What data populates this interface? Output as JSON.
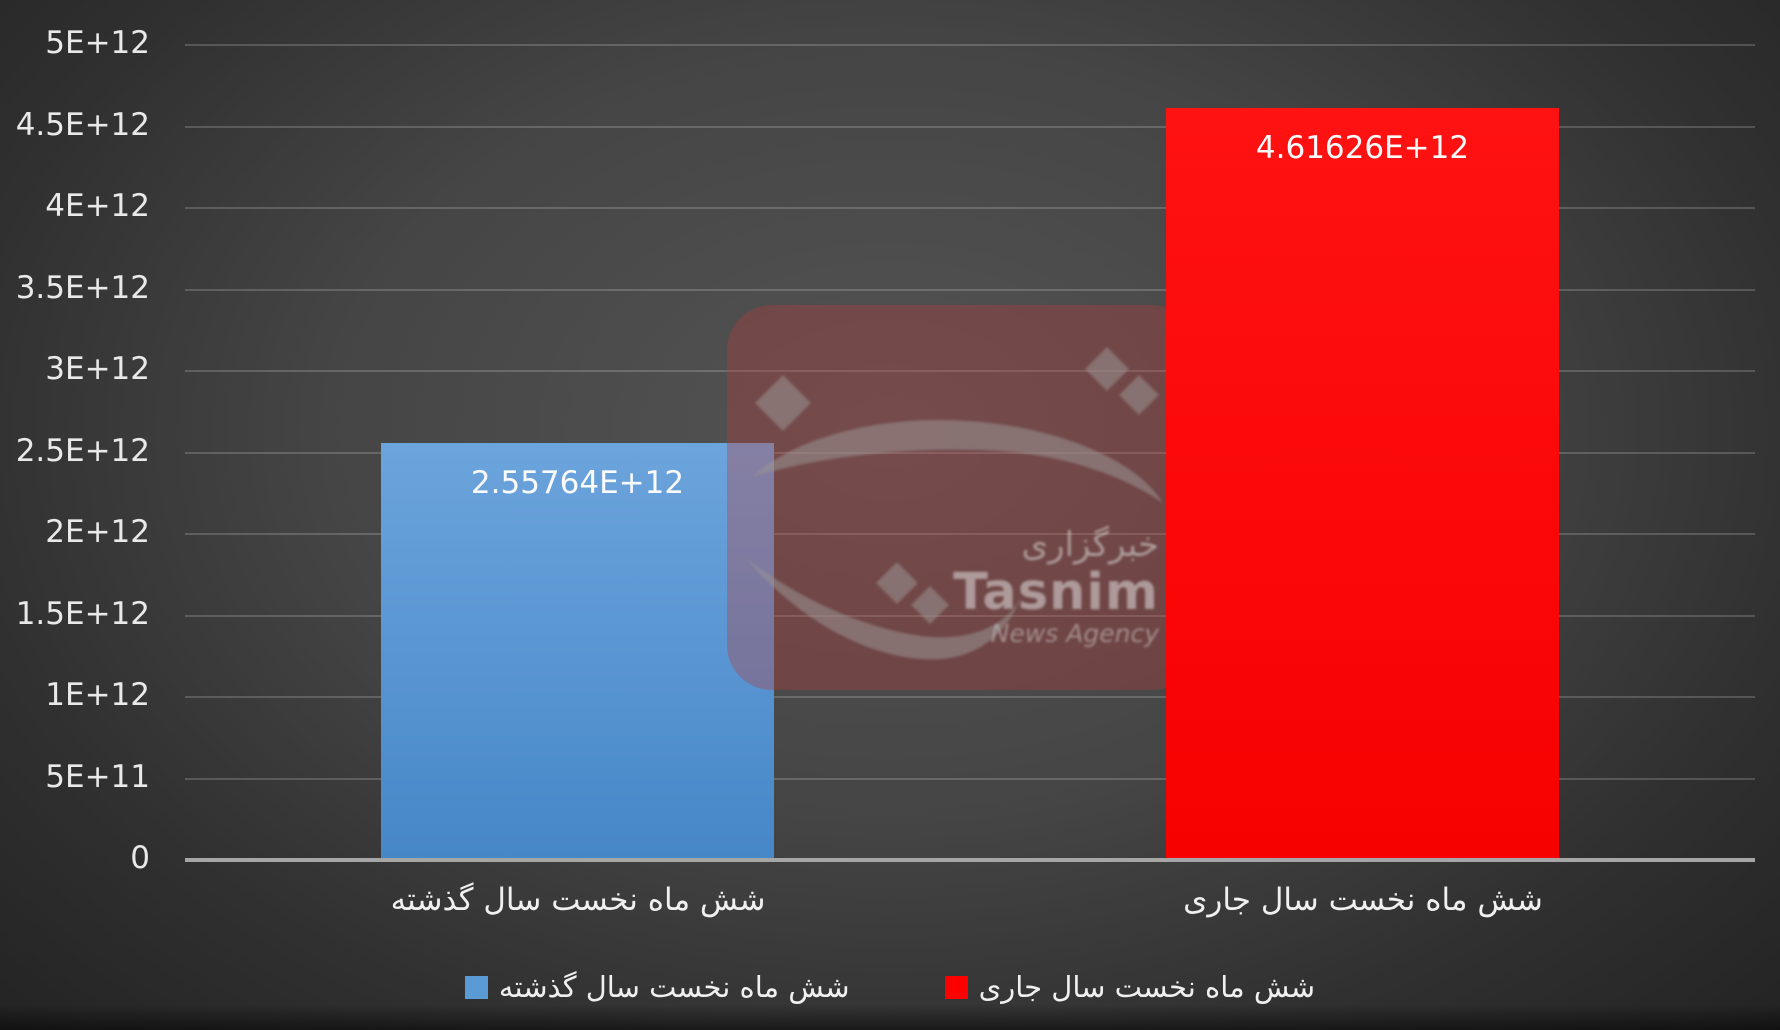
{
  "chart_data": {
    "type": "bar",
    "categories": [
      "شش ماه نخست سال گذشته",
      "شش ماه نخست سال جاری"
    ],
    "values": [
      2557640000000,
      4616260000000
    ],
    "bar_labels": [
      "2.55764E+12",
      "4.61626E+12"
    ],
    "bar_fills": [
      [
        "#6CA4DC",
        "#4687C8"
      ],
      [
        "#FF1212",
        "#F70000"
      ]
    ],
    "bar_colors": [
      "#5B9BD5",
      "#FF0000"
    ],
    "title": "",
    "xlabel": "",
    "ylabel": "",
    "ylim": [
      0,
      5000000000000
    ],
    "ytick_step": 500000000000,
    "ytick_labels": [
      "0",
      "5E+11",
      "1E+12",
      "1.5E+12",
      "2E+12",
      "2.5E+12",
      "3E+12",
      "3.5E+12",
      "4E+12",
      "4.5E+12",
      "5E+12"
    ],
    "grid": true,
    "legend_position": "bottom",
    "legend": [
      {
        "label": "شش ماه نخست سال گذشته",
        "color": "#5B9BD5"
      },
      {
        "label": "شش ماه نخست سال جاری",
        "color": "#FF0000"
      }
    ]
  },
  "watermark": {
    "agency_fa": "خبرگزاری",
    "name_en": "Tasnim",
    "tagline_en": "News Agency"
  }
}
